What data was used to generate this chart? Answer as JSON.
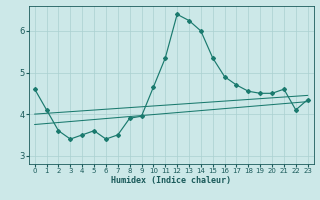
{
  "xlabel": "Humidex (Indice chaleur)",
  "bg_color": "#cce8e8",
  "line_color": "#1a7a6e",
  "grid_color": "#aad0d0",
  "xlim": [
    -0.5,
    23.5
  ],
  "ylim": [
    2.8,
    6.6
  ],
  "yticks": [
    3,
    4,
    5,
    6
  ],
  "xticks": [
    0,
    1,
    2,
    3,
    4,
    5,
    6,
    7,
    8,
    9,
    10,
    11,
    12,
    13,
    14,
    15,
    16,
    17,
    18,
    19,
    20,
    21,
    22,
    23
  ],
  "series1_x": [
    0,
    1,
    2,
    3,
    4,
    5,
    6,
    7,
    8,
    9,
    10,
    11,
    12,
    13,
    14,
    15,
    16,
    17,
    18,
    19,
    20,
    21,
    22,
    23
  ],
  "series1_y": [
    4.6,
    4.1,
    3.6,
    3.4,
    3.5,
    3.6,
    3.4,
    3.5,
    3.9,
    3.95,
    4.65,
    5.35,
    6.4,
    6.25,
    6.0,
    5.35,
    4.9,
    4.7,
    4.55,
    4.5,
    4.5,
    4.6,
    4.1,
    4.35
  ],
  "series2_x": [
    0,
    23
  ],
  "series2_y": [
    3.75,
    4.3
  ],
  "series3_x": [
    0,
    23
  ],
  "series3_y": [
    4.0,
    4.45
  ],
  "xlabel_fontsize": 6.0,
  "tick_fontsize_x": 5.0,
  "tick_fontsize_y": 6.0
}
